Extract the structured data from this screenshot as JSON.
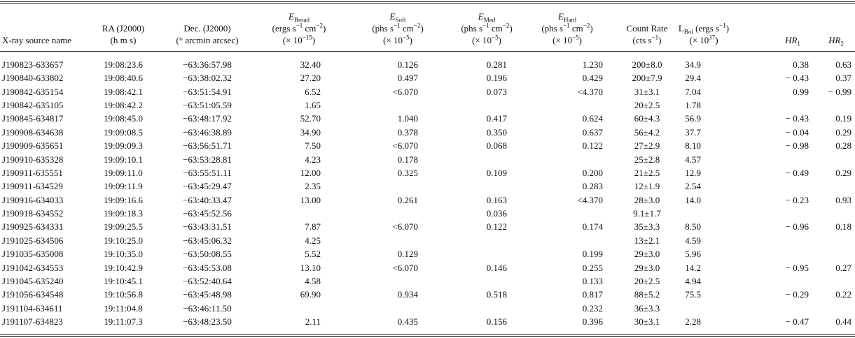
{
  "header": {
    "columns": [
      {
        "lines": [
          [
            {
              "t": "X-ray source name"
            }
          ]
        ]
      },
      {
        "lines": [
          [
            {
              "t": "RA (J2000)"
            }
          ],
          [
            {
              "t": "(h m s)"
            }
          ]
        ]
      },
      {
        "lines": [
          [
            {
              "t": "Dec. (J2000)"
            }
          ],
          [
            {
              "t": "(° arcmin arcsec)"
            }
          ]
        ]
      },
      {
        "lines": [
          [
            {
              "t": "E",
              "s": "i"
            },
            {
              "t": "Broad",
              "s": "sub"
            }
          ],
          [
            {
              "t": "(ergs s"
            },
            {
              "t": "−1",
              "s": "sup"
            },
            {
              "t": " cm"
            },
            {
              "t": "−2",
              "s": "sup"
            },
            {
              "t": ")"
            }
          ],
          [
            {
              "t": "(× 10"
            },
            {
              "t": "−15",
              "s": "sup"
            },
            {
              "t": ")"
            }
          ]
        ]
      },
      {
        "lines": [
          [
            {
              "t": "E",
              "s": "i"
            },
            {
              "t": "Soft",
              "s": "sub"
            }
          ],
          [
            {
              "t": "(phs s"
            },
            {
              "t": "−1",
              "s": "sup"
            },
            {
              "t": " cm"
            },
            {
              "t": "−2",
              "s": "sup"
            },
            {
              "t": ")"
            }
          ],
          [
            {
              "t": "(× 10"
            },
            {
              "t": "−5",
              "s": "sup"
            },
            {
              "t": ")"
            }
          ]
        ]
      },
      {
        "lines": [
          [
            {
              "t": "E",
              "s": "i"
            },
            {
              "t": "Med",
              "s": "sub"
            }
          ],
          [
            {
              "t": "(phs s"
            },
            {
              "t": "−1",
              "s": "sup"
            },
            {
              "t": " cm"
            },
            {
              "t": "−2",
              "s": "sup"
            },
            {
              "t": ")"
            }
          ],
          [
            {
              "t": "(× 10"
            },
            {
              "t": "−5",
              "s": "sup"
            },
            {
              "t": ")"
            }
          ]
        ]
      },
      {
        "lines": [
          [
            {
              "t": "E",
              "s": "i"
            },
            {
              "t": "Hard",
              "s": "sub"
            }
          ],
          [
            {
              "t": "(phs s"
            },
            {
              "t": "−1",
              "s": "sup"
            },
            {
              "t": " cm"
            },
            {
              "t": "−2",
              "s": "sup"
            },
            {
              "t": ")"
            }
          ],
          [
            {
              "t": "(× 10"
            },
            {
              "t": "−5",
              "s": "sup"
            },
            {
              "t": ")"
            }
          ]
        ]
      },
      {
        "lines": [
          [
            {
              "t": "Count Rate"
            }
          ],
          [
            {
              "t": "(cts s"
            },
            {
              "t": "−1",
              "s": "sup"
            },
            {
              "t": ")"
            }
          ]
        ]
      },
      {
        "lines": [
          [
            {
              "t": "L"
            },
            {
              "t": "Bol",
              "s": "sub"
            },
            {
              "t": " (ergs s"
            },
            {
              "t": "−1",
              "s": "sup"
            },
            {
              "t": ")"
            }
          ],
          [
            {
              "t": "(× 10"
            },
            {
              "t": "37",
              "s": "sup"
            },
            {
              "t": ")"
            }
          ]
        ]
      },
      {
        "lines": [
          [
            {
              "t": "HR",
              "s": "i"
            },
            {
              "t": "1",
              "s": "sub"
            }
          ]
        ]
      },
      {
        "lines": [
          [
            {
              "t": "HR",
              "s": "i"
            },
            {
              "t": "2",
              "s": "sub"
            }
          ]
        ]
      }
    ]
  },
  "table": {
    "rows": [
      [
        "J190823-633657",
        "19:08:23.6",
        "−63:36:57.98",
        "32.40",
        "0.126",
        "0.281",
        "1.230",
        "200±8.0",
        "34.9",
        "0.38",
        "0.63"
      ],
      [
        "J190840-633802",
        "19:08:40.6",
        "−63:38:02.32",
        "27.20",
        "0.497",
        "0.196",
        "0.429",
        "200±7.9",
        "29.4",
        "− 0.43",
        "0.37"
      ],
      [
        "J190842-635154",
        "19:08:42.1",
        "−63:51:54.91",
        "6.52",
        "<6.070",
        "0.073",
        "<4.370",
        "31±3.1",
        "7.04",
        "0.99",
        "− 0.99"
      ],
      [
        "J190842-635105",
        "19:08:42.2",
        "−63:51:05.59",
        "1.65",
        null,
        null,
        null,
        "20±2.5",
        "1.78",
        null,
        null
      ],
      [
        "J190845-634817",
        "19:08:45.0",
        "−63:48:17.92",
        "52.70",
        "1.040",
        "0.417",
        "0.624",
        "60±4.3",
        "56.9",
        "− 0.43",
        "0.19"
      ],
      [
        "J190908-634638",
        "19:09:08.5",
        "−63:46:38.89",
        "34.90",
        "0.378",
        "0.350",
        "0.637",
        "56±4.2",
        "37.7",
        "− 0.04",
        "0.29"
      ],
      [
        "J190909-635651",
        "19:09:09.3",
        "−63:56:51.71",
        "7.50",
        "<6.070",
        "0.068",
        "0.122",
        "27±2.9",
        "8.10",
        "− 0.98",
        "0.28"
      ],
      [
        "J190910-635328",
        "19:09:10.1",
        "−63:53:28.81",
        "4.23",
        "0.178",
        null,
        null,
        "25±2.8",
        "4.57",
        null,
        null
      ],
      [
        "J190911-635551",
        "19:09:11.0",
        "−63:55:51.11",
        "12.00",
        "0.325",
        "0.109",
        "0.200",
        "21±2.5",
        "12.9",
        "− 0.49",
        "0.29"
      ],
      [
        "J190911-634529",
        "19:09:11.9",
        "−63:45:29.47",
        "2.35",
        null,
        null,
        "0.283",
        "12±1.9",
        "2.54",
        null,
        null
      ],
      [
        "J190916-634033",
        "19:09:16.6",
        "−63:40:33.47",
        "13.00",
        "0.261",
        "0.163",
        "<4.370",
        "28±3.0",
        "14.0",
        "− 0.23",
        "0.93"
      ],
      [
        "J190918-634552",
        "19:09:18.3",
        "−63:45:52.56",
        null,
        null,
        "0.036",
        null,
        "9.1±1.7",
        null,
        null,
        null
      ],
      [
        "J190925-634331",
        "19:09:25.5",
        "−63:43:31.51",
        "7.87",
        "<6.070",
        "0.122",
        "0.174",
        "35±3.3",
        "8.50",
        "− 0.96",
        "0.18"
      ],
      [
        "J191025-634506",
        "19:10:25.0",
        "−63:45:06.32",
        "4.25",
        null,
        null,
        null,
        "13±2.1",
        "4.59",
        null,
        null
      ],
      [
        "J191035-635008",
        "19:10:35.0",
        "−63:50:08.55",
        "5.52",
        "0.129",
        null,
        "0.199",
        "29±3.0",
        "5.96",
        null,
        null
      ],
      [
        "J191042-634553",
        "19:10:42.9",
        "−63:45:53.08",
        "13.10",
        "<6.070",
        "0.146",
        "0.255",
        "29±3.0",
        "14.2",
        "− 0.95",
        "0.27"
      ],
      [
        "J191045-635240",
        "19:10:45.1",
        "−63:52:40.64",
        "4.58",
        null,
        null,
        "0.133",
        "20±2.5",
        "4.94",
        null,
        null
      ],
      [
        "J191056-634548",
        "19:10:56.8",
        "−63:45:48.98",
        "69.90",
        "0.934",
        "0.518",
        "0.817",
        "88±5.2",
        "75.5",
        "− 0.29",
        "0.22"
      ],
      [
        "J191104-634611",
        "19:11:04.8",
        "−63:46:11.50",
        null,
        null,
        null,
        "0.232",
        "36±3.3",
        null,
        null,
        null
      ],
      [
        "J191107-634823",
        "19:11:07.3",
        "−63:48:23.50",
        "2.11",
        "0.435",
        "0.156",
        "0.396",
        "30±3.1",
        "2.28",
        "− 0.47",
        "0.44"
      ]
    ]
  }
}
